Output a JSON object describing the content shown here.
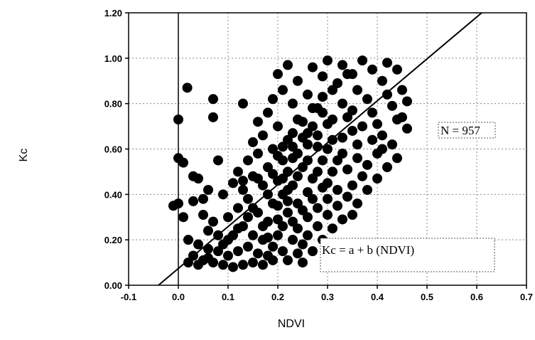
{
  "chart_data": {
    "type": "scatter",
    "xlabel": "NDVI",
    "ylabel": "Kc",
    "xlim": [
      -0.1,
      0.7
    ],
    "ylim": [
      0.0,
      1.2
    ],
    "x_ticks": [
      "-0.1",
      "0.0",
      "0.1",
      "0.2",
      "0.3",
      "0.4",
      "0.5",
      "0.6",
      "0.7"
    ],
    "y_ticks": [
      "0.00",
      "0.20",
      "0.40",
      "0.60",
      "0.80",
      "1.00",
      "1.20"
    ],
    "grid": true,
    "annotations": {
      "count": "N  = 957",
      "equation": "Kc = a + b (NDVI)"
    },
    "fit_line": {
      "x": [
        -0.04,
        0.61
      ],
      "y": [
        0.0,
        1.2
      ]
    },
    "series": [
      {
        "points": [
          [
            0.018,
            0.87
          ],
          [
            0.07,
            0.82
          ],
          [
            0.07,
            0.74
          ],
          [
            0.13,
            0.8
          ],
          [
            0.0,
            0.73
          ],
          [
            0.0,
            0.56
          ],
          [
            0.01,
            0.54
          ],
          [
            -0.01,
            0.35
          ],
          [
            0.0,
            0.36
          ],
          [
            0.01,
            0.3
          ],
          [
            0.03,
            0.48
          ],
          [
            0.04,
            0.47
          ],
          [
            0.05,
            0.38
          ],
          [
            0.06,
            0.42
          ],
          [
            0.03,
            0.37
          ],
          [
            0.08,
            0.55
          ],
          [
            0.05,
            0.31
          ],
          [
            0.07,
            0.28
          ],
          [
            0.06,
            0.24
          ],
          [
            0.08,
            0.22
          ],
          [
            0.02,
            0.2
          ],
          [
            0.04,
            0.18
          ],
          [
            0.06,
            0.16
          ],
          [
            0.03,
            0.13
          ],
          [
            0.05,
            0.11
          ],
          [
            0.02,
            0.1
          ],
          [
            0.07,
            0.1
          ],
          [
            0.09,
            0.09
          ],
          [
            0.11,
            0.08
          ],
          [
            0.13,
            0.09
          ],
          [
            0.15,
            0.1
          ],
          [
            0.17,
            0.09
          ],
          [
            0.1,
            0.13
          ],
          [
            0.12,
            0.15
          ],
          [
            0.14,
            0.17
          ],
          [
            0.16,
            0.14
          ],
          [
            0.18,
            0.13
          ],
          [
            0.09,
            0.18
          ],
          [
            0.11,
            0.22
          ],
          [
            0.13,
            0.26
          ],
          [
            0.15,
            0.22
          ],
          [
            0.17,
            0.2
          ],
          [
            0.19,
            0.17
          ],
          [
            0.2,
            0.22
          ],
          [
            0.1,
            0.3
          ],
          [
            0.12,
            0.34
          ],
          [
            0.14,
            0.38
          ],
          [
            0.16,
            0.32
          ],
          [
            0.18,
            0.28
          ],
          [
            0.21,
            0.26
          ],
          [
            0.09,
            0.4
          ],
          [
            0.11,
            0.45
          ],
          [
            0.13,
            0.42
          ],
          [
            0.15,
            0.48
          ],
          [
            0.17,
            0.44
          ],
          [
            0.19,
            0.36
          ],
          [
            0.22,
            0.32
          ],
          [
            0.23,
            0.28
          ],
          [
            0.12,
            0.5
          ],
          [
            0.14,
            0.55
          ],
          [
            0.16,
            0.58
          ],
          [
            0.18,
            0.52
          ],
          [
            0.2,
            0.46
          ],
          [
            0.21,
            0.4
          ],
          [
            0.24,
            0.36
          ],
          [
            0.25,
            0.33
          ],
          [
            0.15,
            0.63
          ],
          [
            0.17,
            0.66
          ],
          [
            0.19,
            0.6
          ],
          [
            0.21,
            0.55
          ],
          [
            0.22,
            0.5
          ],
          [
            0.23,
            0.44
          ],
          [
            0.26,
            0.41
          ],
          [
            0.27,
            0.38
          ],
          [
            0.16,
            0.72
          ],
          [
            0.18,
            0.76
          ],
          [
            0.2,
            0.7
          ],
          [
            0.22,
            0.64
          ],
          [
            0.24,
            0.58
          ],
          [
            0.25,
            0.52
          ],
          [
            0.27,
            0.47
          ],
          [
            0.29,
            0.43
          ],
          [
            0.19,
            0.82
          ],
          [
            0.21,
            0.86
          ],
          [
            0.23,
            0.8
          ],
          [
            0.24,
            0.73
          ],
          [
            0.26,
            0.67
          ],
          [
            0.28,
            0.61
          ],
          [
            0.29,
            0.55
          ],
          [
            0.31,
            0.5
          ],
          [
            0.2,
            0.93
          ],
          [
            0.22,
            0.97
          ],
          [
            0.24,
            0.9
          ],
          [
            0.26,
            0.84
          ],
          [
            0.28,
            0.78
          ],
          [
            0.3,
            0.71
          ],
          [
            0.31,
            0.64
          ],
          [
            0.33,
            0.58
          ],
          [
            0.27,
            0.96
          ],
          [
            0.29,
            0.92
          ],
          [
            0.31,
            0.86
          ],
          [
            0.33,
            0.8
          ],
          [
            0.34,
            0.74
          ],
          [
            0.35,
            0.68
          ],
          [
            0.36,
            0.62
          ],
          [
            0.3,
            0.99
          ],
          [
            0.33,
            0.97
          ],
          [
            0.35,
            0.93
          ],
          [
            0.36,
            0.86
          ],
          [
            0.38,
            0.82
          ],
          [
            0.39,
            0.76
          ],
          [
            0.4,
            0.71
          ],
          [
            0.41,
            0.66
          ],
          [
            0.37,
            0.99
          ],
          [
            0.39,
            0.95
          ],
          [
            0.41,
            0.9
          ],
          [
            0.42,
            0.84
          ],
          [
            0.43,
            0.79
          ],
          [
            0.44,
            0.73
          ],
          [
            0.42,
            0.98
          ],
          [
            0.44,
            0.95
          ],
          [
            0.45,
            0.86
          ],
          [
            0.46,
            0.81
          ],
          [
            0.45,
            0.74
          ],
          [
            0.46,
            0.69
          ],
          [
            0.43,
            0.62
          ],
          [
            0.4,
            0.58
          ],
          [
            0.38,
            0.53
          ],
          [
            0.37,
            0.48
          ],
          [
            0.35,
            0.44
          ],
          [
            0.34,
            0.39
          ],
          [
            0.32,
            0.35
          ],
          [
            0.3,
            0.31
          ],
          [
            0.28,
            0.26
          ],
          [
            0.26,
            0.22
          ],
          [
            0.25,
            0.18
          ],
          [
            0.24,
            0.14
          ],
          [
            0.22,
            0.11
          ],
          [
            0.35,
            0.31
          ],
          [
            0.38,
            0.18
          ],
          [
            0.25,
            0.1
          ],
          [
            0.27,
            0.15
          ],
          [
            0.29,
            0.2
          ],
          [
            0.31,
            0.25
          ],
          [
            0.33,
            0.29
          ],
          [
            0.36,
            0.36
          ],
          [
            0.38,
            0.42
          ],
          [
            0.4,
            0.47
          ],
          [
            0.42,
            0.52
          ],
          [
            0.44,
            0.56
          ],
          [
            0.21,
            0.61
          ],
          [
            0.23,
            0.67
          ],
          [
            0.25,
            0.72
          ],
          [
            0.27,
            0.78
          ],
          [
            0.29,
            0.83
          ],
          [
            0.32,
            0.89
          ],
          [
            0.34,
            0.93
          ],
          [
            0.19,
            0.49
          ],
          [
            0.2,
            0.57
          ],
          [
            0.23,
            0.61
          ],
          [
            0.26,
            0.62
          ],
          [
            0.28,
            0.66
          ],
          [
            0.3,
            0.6
          ],
          [
            0.32,
            0.55
          ],
          [
            0.33,
            0.65
          ],
          [
            0.3,
            0.45
          ],
          [
            0.28,
            0.5
          ],
          [
            0.26,
            0.55
          ],
          [
            0.24,
            0.48
          ],
          [
            0.22,
            0.42
          ],
          [
            0.2,
            0.35
          ],
          [
            0.18,
            0.4
          ],
          [
            0.16,
            0.47
          ],
          [
            0.14,
            0.3
          ],
          [
            0.12,
            0.25
          ],
          [
            0.1,
            0.2
          ],
          [
            0.08,
            0.15
          ],
          [
            0.06,
            0.12
          ],
          [
            0.04,
            0.09
          ],
          [
            0.23,
            0.2
          ],
          [
            0.21,
            0.15
          ],
          [
            0.19,
            0.11
          ],
          [
            0.17,
            0.26
          ],
          [
            0.15,
            0.34
          ],
          [
            0.13,
            0.46
          ],
          [
            0.35,
            0.77
          ],
          [
            0.37,
            0.7
          ],
          [
            0.39,
            0.64
          ],
          [
            0.41,
            0.6
          ],
          [
            0.31,
            0.73
          ],
          [
            0.29,
            0.76
          ],
          [
            0.27,
            0.7
          ],
          [
            0.25,
            0.65
          ],
          [
            0.23,
            0.56
          ],
          [
            0.21,
            0.47
          ],
          [
            0.34,
            0.51
          ],
          [
            0.36,
            0.56
          ],
          [
            0.32,
            0.42
          ],
          [
            0.3,
            0.38
          ],
          [
            0.28,
            0.34
          ],
          [
            0.26,
            0.3
          ],
          [
            0.24,
            0.25
          ],
          [
            0.22,
            0.37
          ],
          [
            0.2,
            0.29
          ],
          [
            0.18,
            0.21
          ]
        ]
      }
    ]
  }
}
